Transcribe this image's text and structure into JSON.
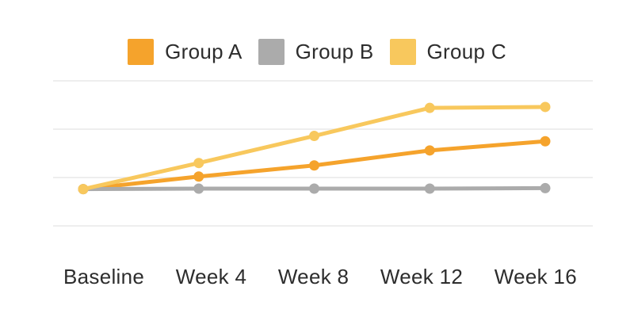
{
  "page": {
    "background_color": "#ffffff",
    "text_color": "#2d2d2d"
  },
  "legend": {
    "items": [
      {
        "label": "Group A",
        "color": "#F5A32C"
      },
      {
        "label": "Group B",
        "color": "#ABABAB"
      },
      {
        "label": "Group C",
        "color": "#F8C85D"
      }
    ]
  },
  "chart_data": {
    "type": "line",
    "title": "",
    "xlabel": "",
    "ylabel": "",
    "categories": [
      "Baseline",
      "Week 4",
      "Week 8",
      "Week 12",
      "Week 16"
    ],
    "series": [
      {
        "name": "Group A",
        "color": "#F5A32C",
        "values": [
          0.76,
          1.02,
          1.25,
          1.56,
          1.75
        ]
      },
      {
        "name": "Group B",
        "color": "#ABABAB",
        "values": [
          0.76,
          0.77,
          0.77,
          0.77,
          0.78
        ]
      },
      {
        "name": "Group C",
        "color": "#F8C85D",
        "values": [
          0.76,
          1.3,
          1.86,
          2.44,
          2.46
        ]
      }
    ],
    "ylim": [
      0,
      3.3
    ],
    "y_gridlines": [
      0,
      1,
      2,
      3
    ],
    "grid": true,
    "gridline_color": "#E8E8E8",
    "legend_position": "top",
    "axis_tick_labels_visible": {
      "x": true,
      "y": false
    }
  }
}
